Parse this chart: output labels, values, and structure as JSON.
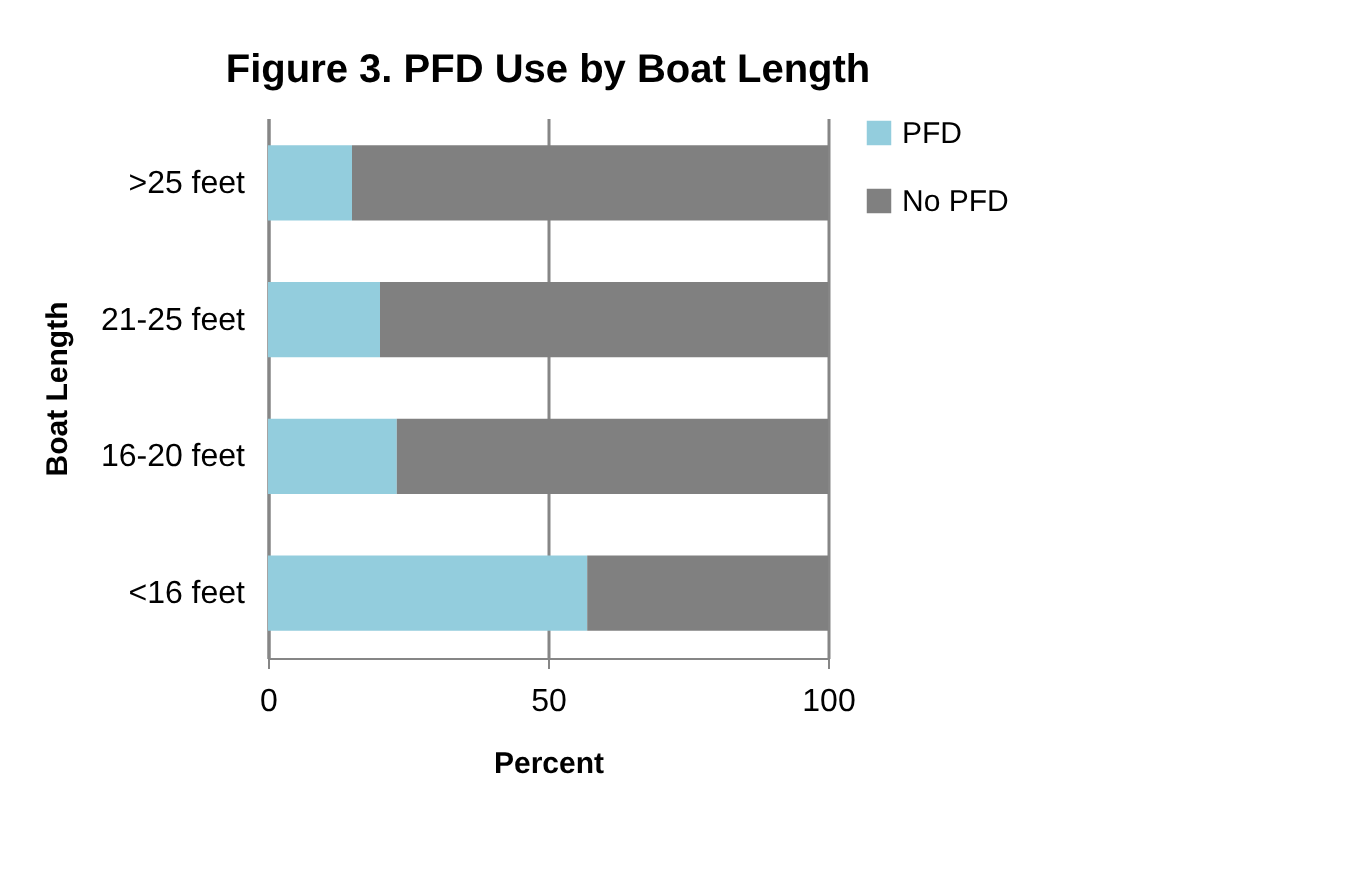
{
  "chart_data": {
    "type": "bar",
    "title": "Figure 3. PFD Use by Boat Length",
    "xlabel": "Percent",
    "ylabel": "Boat Length",
    "orientation": "horizontal",
    "stacked": true,
    "categories": [
      ">25 feet",
      "21-25 feet",
      "16-20 feet",
      "<16 feet"
    ],
    "series": [
      {
        "name": "PFD",
        "color": "#93cddd",
        "values": [
          15,
          20,
          23,
          57
        ]
      },
      {
        "name": "No PFD",
        "color": "#808080",
        "values": [
          85,
          80,
          77,
          43
        ]
      }
    ],
    "xlim": [
      0,
      100
    ],
    "xticks": [
      0,
      50,
      100
    ],
    "grid": "x",
    "legend": "right"
  }
}
